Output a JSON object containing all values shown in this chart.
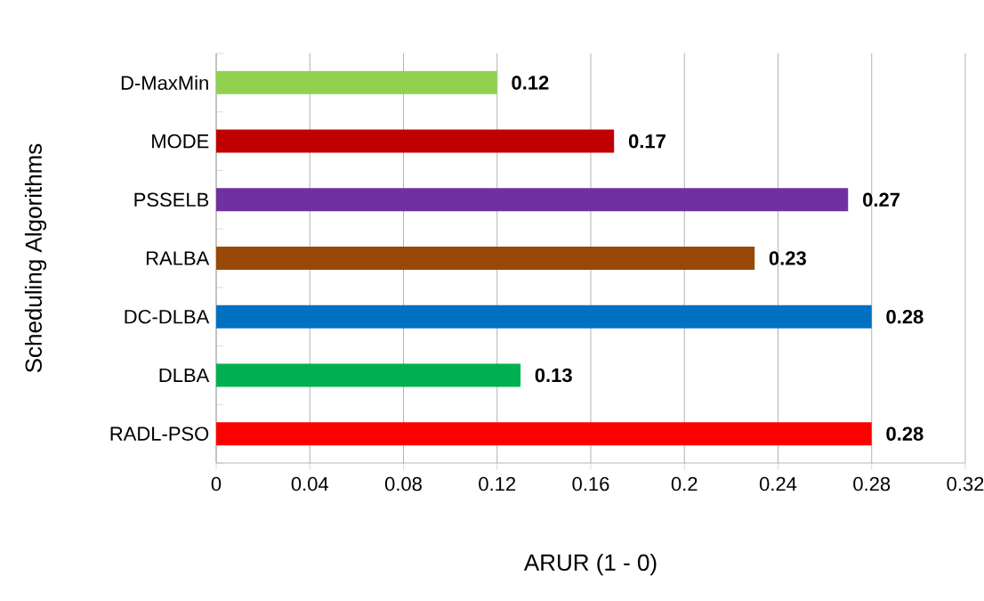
{
  "chart_data": {
    "type": "bar",
    "orientation": "horizontal",
    "xlabel": "ARUR (1 - 0)",
    "ylabel": "Scheduling Algorithms",
    "categories": [
      "D-MaxMin",
      "MODE",
      "PSSELB",
      "RALBA",
      "DC-DLBA",
      "DLBA",
      "RADL-PSO"
    ],
    "values": [
      0.12,
      0.17,
      0.27,
      0.23,
      0.28,
      0.13,
      0.28
    ],
    "colors": [
      "#92d050",
      "#c00000",
      "#7030a0",
      "#984807",
      "#0070c0",
      "#00b050",
      "#ff0000"
    ],
    "xlim": [
      0,
      0.32
    ],
    "xticks": [
      0,
      0.04,
      0.08,
      0.12,
      0.16,
      0.2,
      0.24,
      0.28,
      0.32
    ],
    "grid": "x",
    "data_labels": true
  }
}
